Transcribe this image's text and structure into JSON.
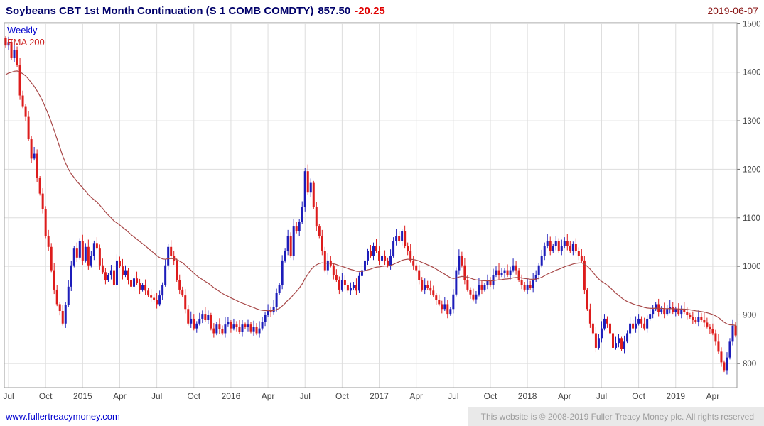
{
  "header": {
    "title": "Soybeans CBT 1st Month Continuation (S 1 COMB COMDTY)",
    "price": "857.50",
    "change": "-20.25",
    "date": "2019-06-07"
  },
  "legend": {
    "timeframe": "Weekly",
    "ema_label": "EMA 200"
  },
  "footer": {
    "link": "www.fullertreacymoney.com",
    "copyright": "This website is © 2008-2019 Fuller Treacy Money plc. All rights reserved"
  },
  "colors": {
    "up": "#1c1cba",
    "down": "#dd1c1c",
    "ema": "#a84848",
    "grid": "#dddddd",
    "border": "#999999",
    "axis_text": "#444444",
    "title_text": "#00006a",
    "change_negative": "#e00000",
    "date_text": "#8b1a1a",
    "link": "#0000d0"
  },
  "chart_data": {
    "type": "candlestick",
    "timeframe": "weekly",
    "title": "Soybeans CBT 1st Month Continuation (S 1 COMB COMDTY)",
    "last_price": 857.5,
    "change": -20.25,
    "date": "2019-06-07",
    "ylim": [
      750,
      1502
    ],
    "y_ticks": [
      800,
      900,
      1000,
      1100,
      1200,
      1300,
      1400,
      1500
    ],
    "x_tick_labels": [
      "Jul",
      "Oct",
      "2015",
      "Apr",
      "Jul",
      "Oct",
      "2016",
      "Apr",
      "Jul",
      "Oct",
      "2017",
      "Apr",
      "Jul",
      "Oct",
      "2018",
      "Apr",
      "Jul",
      "Oct",
      "2019",
      "Apr"
    ],
    "x_tick_weeks": [
      1,
      14,
      27,
      40,
      53,
      66,
      79,
      92,
      105,
      118,
      131,
      144,
      157,
      170,
      183,
      196,
      209,
      222,
      235,
      248
    ],
    "first_open": 1470,
    "closes": [
      1455,
      1462,
      1430,
      1445,
      1415,
      1352,
      1330,
      1308,
      1262,
      1222,
      1232,
      1182,
      1150,
      1118,
      1062,
      1040,
      992,
      952,
      922,
      908,
      882,
      920,
      958,
      1002,
      1038,
      1018,
      1052,
      1012,
      1040,
      1002,
      1022,
      1048,
      1038,
      1002,
      988,
      972,
      982,
      992,
      962,
      1012,
      1000,
      982,
      992,
      972,
      958,
      975,
      965,
      952,
      962,
      950,
      940,
      935,
      930,
      922,
      940,
      962,
      1002,
      1040,
      1022,
      1012,
      972,
      952,
      940,
      912,
      882,
      892,
      872,
      882,
      892,
      902,
      890,
      900,
      872,
      862,
      880,
      870,
      862,
      880,
      885,
      872,
      880,
      875,
      865,
      880,
      875,
      880,
      866,
      875,
      862,
      872,
      886,
      900,
      910,
      905,
      916,
      945,
      962,
      1012,
      1032,
      1062,
      1022,
      1082,
      1072,
      1092,
      1122,
      1196,
      1152,
      1172,
      1122,
      1082,
      1062,
      1032,
      992,
      1012,
      1002,
      982,
      972,
      952,
      972,
      962,
      950,
      956,
      962,
      950,
      980,
      992,
      1012,
      1032,
      1022,
      1042,
      1032,
      1012,
      1022,
      1012,
      1002,
      1022,
      1052,
      1062,
      1052,
      1072,
      1042,
      1032,
      1012,
      1002,
      992,
      972,
      952,
      962,
      955,
      950,
      940,
      930,
      922,
      912,
      922,
      902,
      912,
      942,
      992,
      1022,
      1002,
      972,
      952,
      942,
      932,
      942,
      962,
      952,
      962,
      972,
      962,
      982,
      992,
      982,
      986,
      992,
      982,
      992,
      1002,
      992,
      972,
      962,
      952,
      962,
      956,
      972,
      982,
      1002,
      1022,
      1042,
      1052,
      1032,
      1042,
      1052,
      1032,
      1042,
      1052,
      1042,
      1032,
      1046,
      1032,
      1022,
      1012,
      952,
      912,
      882,
      862,
      832,
      852,
      872,
      892,
      882,
      862,
      832,
      842,
      852,
      830,
      846,
      862,
      882,
      872,
      882,
      892,
      882,
      872,
      892,
      902,
      912,
      922,
      906,
      912,
      902,
      912,
      916,
      906,
      912,
      902,
      912,
      906,
      900,
      896,
      890,
      886,
      896,
      890,
      884,
      876,
      870,
      862,
      846,
      824,
      802,
      786,
      812,
      846,
      877.75,
      857.5
    ],
    "ema": {
      "label": "EMA 200",
      "seed": 1392,
      "alpha": 0.0488
    }
  }
}
